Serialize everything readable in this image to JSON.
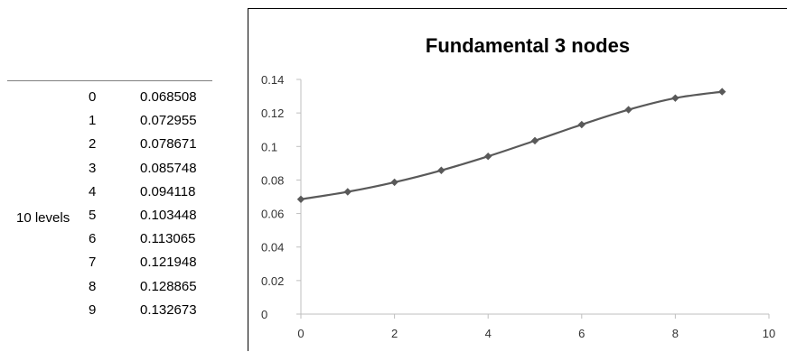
{
  "table": {
    "group_label": "10 levels",
    "rows": [
      {
        "index": "0",
        "value": "0.068508"
      },
      {
        "index": "1",
        "value": "0.072955"
      },
      {
        "index": "2",
        "value": "0.078671"
      },
      {
        "index": "3",
        "value": "0.085748"
      },
      {
        "index": "4",
        "value": "0.094118"
      },
      {
        "index": "5",
        "value": "0.103448"
      },
      {
        "index": "6",
        "value": "0.113065"
      },
      {
        "index": "7",
        "value": "0.121948"
      },
      {
        "index": "8",
        "value": "0.128865"
      },
      {
        "index": "9",
        "value": "0.132673"
      }
    ]
  },
  "chart_data": {
    "type": "line",
    "title": "Fundamental 3 nodes",
    "xlabel": "",
    "ylabel": "",
    "x": [
      0,
      1,
      2,
      3,
      4,
      5,
      6,
      7,
      8,
      9
    ],
    "series": [
      {
        "values": [
          0.068508,
          0.072955,
          0.078671,
          0.085748,
          0.094118,
          0.103448,
          0.113065,
          0.121948,
          0.128865,
          0.132673
        ]
      }
    ],
    "xlim": [
      0,
      10
    ],
    "ylim": [
      0,
      0.14
    ],
    "x_ticks": [
      "0",
      "2",
      "4",
      "6",
      "8",
      "10"
    ],
    "y_ticks": [
      "0",
      "0.02",
      "0.04",
      "0.06",
      "0.08",
      "0.1",
      "0.12",
      "0.14"
    ],
    "grid": false,
    "legend": "none",
    "line_color": "#595959",
    "marker": "diamond"
  }
}
